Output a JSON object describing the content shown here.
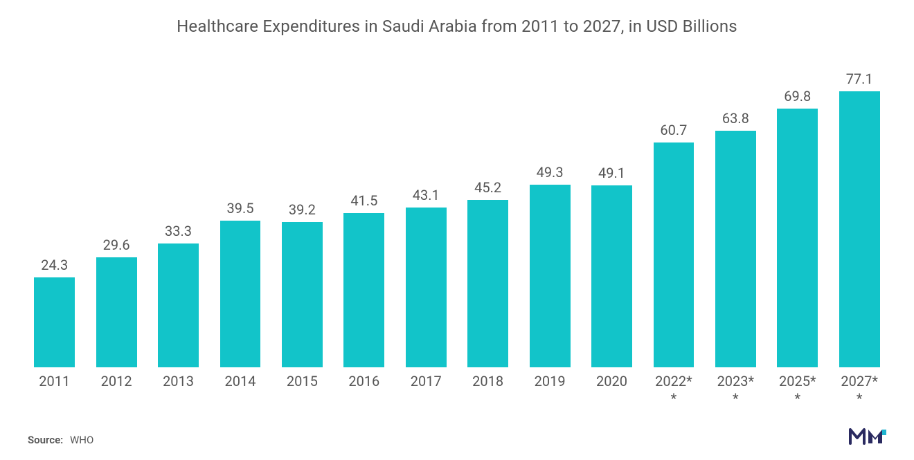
{
  "chart": {
    "type": "bar",
    "title": "Healthcare Expenditures in Saudi Arabia from 2011 to 2027, in USD Billions",
    "title_fontsize": 24,
    "title_color": "#555555",
    "background_color": "#ffffff",
    "bar_color": "#12c4c9",
    "value_label_color": "#555555",
    "value_label_fontsize": 20,
    "axis_label_color": "#555555",
    "axis_label_fontsize": 20,
    "ylim": [
      0,
      80
    ],
    "bar_width": 0.76,
    "categories": [
      "2011",
      "2012",
      "2013",
      "2014",
      "2015",
      "2016",
      "2017",
      "2018",
      "2019",
      "2020",
      "2022*",
      "2023*",
      "2025*",
      "2027*"
    ],
    "category_sub": [
      "",
      "",
      "",
      "",
      "",
      "",
      "",
      "",
      "",
      "",
      "*",
      "*",
      "*",
      "*"
    ],
    "values": [
      24.3,
      29.6,
      33.3,
      39.5,
      39.2,
      41.5,
      43.1,
      45.2,
      49.3,
      49.1,
      60.7,
      63.8,
      69.8,
      77.1
    ]
  },
  "source": {
    "label": "Source:",
    "value": "WHO"
  },
  "logo": {
    "stroke": "#2a2a60",
    "fill_accent": "#1fb4d0",
    "fill_dark": "#2a2a60"
  }
}
